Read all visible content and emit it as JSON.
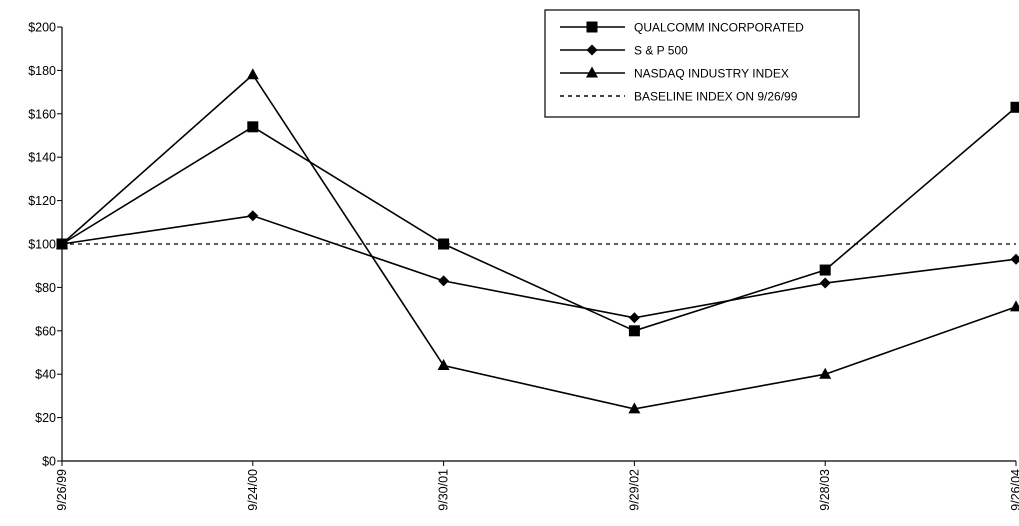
{
  "chart_data": {
    "type": "line",
    "title": "",
    "xlabel": "",
    "ylabel": "",
    "categories": [
      "9/26/99",
      "9/24/00",
      "9/30/01",
      "9/29/02",
      "9/28/03",
      "9/26/04"
    ],
    "ylim": [
      0,
      200
    ],
    "y_ticks": [
      0,
      20,
      40,
      60,
      80,
      100,
      120,
      140,
      160,
      180,
      200
    ],
    "y_tick_labels": [
      "$0",
      "$20",
      "$40",
      "$60",
      "$80",
      "$100",
      "$120",
      "$140",
      "$160",
      "$180",
      "$200"
    ],
    "grid": false,
    "legend_position": "top-right",
    "series": [
      {
        "name": "QUALCOMM INCORPORATED",
        "marker": "square",
        "color": "#000000",
        "values": [
          100,
          154,
          100,
          60,
          88,
          163
        ]
      },
      {
        "name": "S & P 500",
        "marker": "diamond",
        "color": "#000000",
        "values": [
          100,
          113,
          83,
          66,
          82,
          93
        ]
      },
      {
        "name": "NASDAQ INDUSTRY INDEX",
        "marker": "triangle",
        "color": "#000000",
        "values": [
          100,
          178,
          44,
          24,
          40,
          71
        ]
      }
    ],
    "baseline": {
      "name": "BASELINE INDEX ON 9/26/99",
      "value": 100,
      "style": "dashed"
    }
  }
}
